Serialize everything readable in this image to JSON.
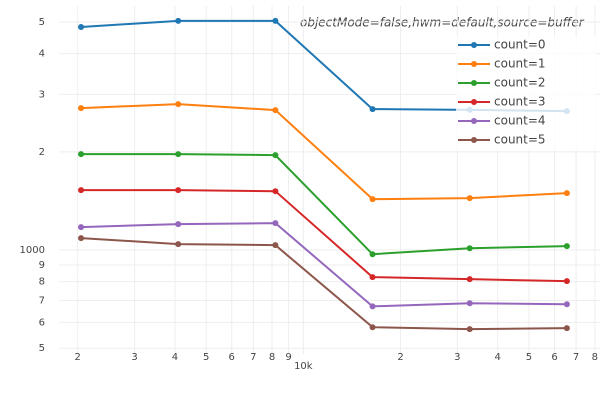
{
  "chart_data": {
    "type": "line",
    "annotation": "objectMode=false,hwm=default,source=buffer",
    "x": [
      2048,
      4096,
      8192,
      16384,
      32768,
      65536
    ],
    "series": [
      {
        "name": "count=0",
        "color": "#1f77b4",
        "values": [
          4830,
          5040,
          5040,
          2705,
          2690,
          2667
        ]
      },
      {
        "name": "count=1",
        "color": "#ff7f0e",
        "values": [
          2724,
          2801,
          2686,
          1432,
          1443,
          1494
        ]
      },
      {
        "name": "count=2",
        "color": "#2ca02c",
        "values": [
          1968,
          1968,
          1954,
          971,
          1013,
          1028
        ]
      },
      {
        "name": "count=3",
        "color": "#d62728",
        "values": [
          1526,
          1526,
          1515,
          826,
          814,
          803
        ]
      },
      {
        "name": "count=4",
        "color": "#9467bd",
        "values": [
          1176,
          1201,
          1209,
          672,
          687,
          682
        ]
      },
      {
        "name": "count=5",
        "color": "#8c564b",
        "values": [
          1088,
          1043,
          1035,
          580,
          572,
          576
        ]
      }
    ],
    "xlog": true,
    "ylog": true,
    "xlim": [
      1750,
      83000
    ],
    "ylim": [
      480,
      5600
    ],
    "xticks": [
      {
        "value": 2000,
        "label": "2"
      },
      {
        "value": 3000,
        "label": "3"
      },
      {
        "value": 4000,
        "label": "4"
      },
      {
        "value": 5000,
        "label": "5"
      },
      {
        "value": 6000,
        "label": "6"
      },
      {
        "value": 7000,
        "label": "7"
      },
      {
        "value": 8000,
        "label": "8"
      },
      {
        "value": 9000,
        "label": "9"
      },
      {
        "value": 10000,
        "label": "10k"
      },
      {
        "value": 20000,
        "label": "2"
      },
      {
        "value": 30000,
        "label": "3"
      },
      {
        "value": 40000,
        "label": "4"
      },
      {
        "value": 50000,
        "label": "5"
      },
      {
        "value": 60000,
        "label": "6"
      },
      {
        "value": 70000,
        "label": "7"
      },
      {
        "value": 80000,
        "label": "8"
      }
    ],
    "yticks": [
      {
        "value": 500,
        "label": "5"
      },
      {
        "value": 600,
        "label": "6"
      },
      {
        "value": 700,
        "label": "7"
      },
      {
        "value": 800,
        "label": "8"
      },
      {
        "value": 900,
        "label": "9"
      },
      1000,
      {
        "value": 2000,
        "label": "2"
      },
      {
        "value": 3000,
        "label": "3"
      },
      {
        "value": 4000,
        "label": "4"
      },
      {
        "value": 5000,
        "label": "5"
      }
    ],
    "grid": true,
    "legend": "top-right"
  }
}
